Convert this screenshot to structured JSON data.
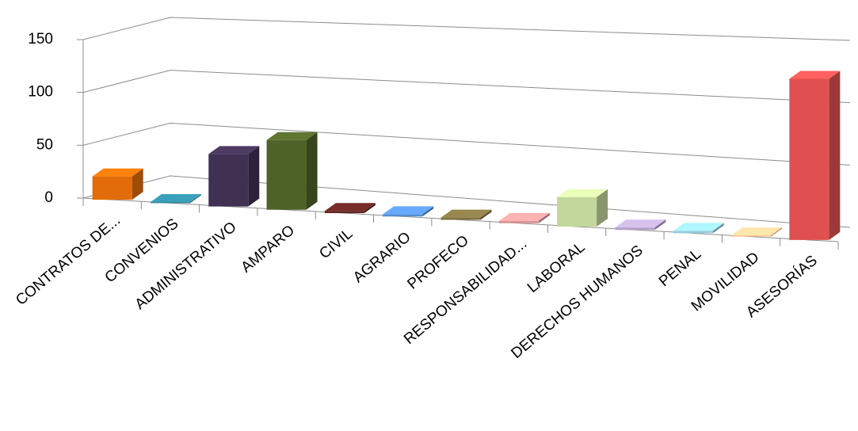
{
  "chart_data": {
    "type": "bar3d",
    "categories": [
      "CONTRATOS DE...",
      "CONVENIOS",
      "ADMINISTRATIVO",
      "AMPARO",
      "CIVIL",
      "AGRARIO",
      "PROFECO",
      "RESPONSABILIDAD...",
      "LABORAL",
      "DERECHOS HUMANOS",
      "PENAL",
      "MOVILIDAD",
      "ASESORÍAS"
    ],
    "values": [
      22,
      1,
      48,
      63,
      2,
      2,
      2,
      2,
      25,
      2,
      2,
      1,
      130
    ],
    "colors": [
      "#e36c0a",
      "#31859c",
      "#403152",
      "#4f6228",
      "#632523",
      "#558ed5",
      "#7f7140",
      "#d99594",
      "#c3d69b",
      "#b3a2c7",
      "#93cddd",
      "#fac090",
      "#e05050"
    ],
    "ylim": [
      0,
      150
    ],
    "yticks": [
      0,
      50,
      100,
      150
    ],
    "grid": true
  }
}
